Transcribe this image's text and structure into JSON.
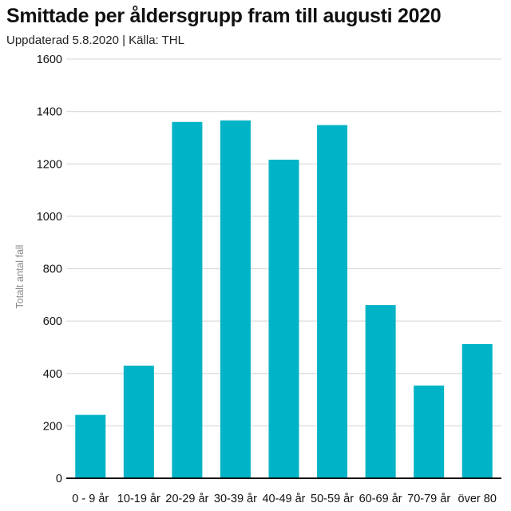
{
  "header": {
    "title": "Smittade per åldersgrupp fram till augusti 2020",
    "subtitle": "Uppdaterad 5.8.2020 | Källa: THL"
  },
  "colors": {
    "bar": "#00b3c6",
    "grid": "#dcdcdc",
    "axis": "#111111"
  },
  "chart_data": {
    "type": "bar",
    "title": "Smittade per åldersgrupp fram till augusti 2020",
    "xlabel": "",
    "ylabel": "Totalt antal fall",
    "ylim": [
      0,
      1600
    ],
    "yticks": [
      0,
      200,
      400,
      600,
      800,
      1000,
      1200,
      1400,
      1600
    ],
    "grid": true,
    "categories": [
      "0 - 9 år",
      "10-19 år",
      "20-29 år",
      "30-39 år",
      "40-49 år",
      "50-59 år",
      "60-69 år",
      "70-79 år",
      "över 80"
    ],
    "values": [
      242,
      430,
      1360,
      1366,
      1216,
      1348,
      661,
      354,
      512
    ]
  }
}
